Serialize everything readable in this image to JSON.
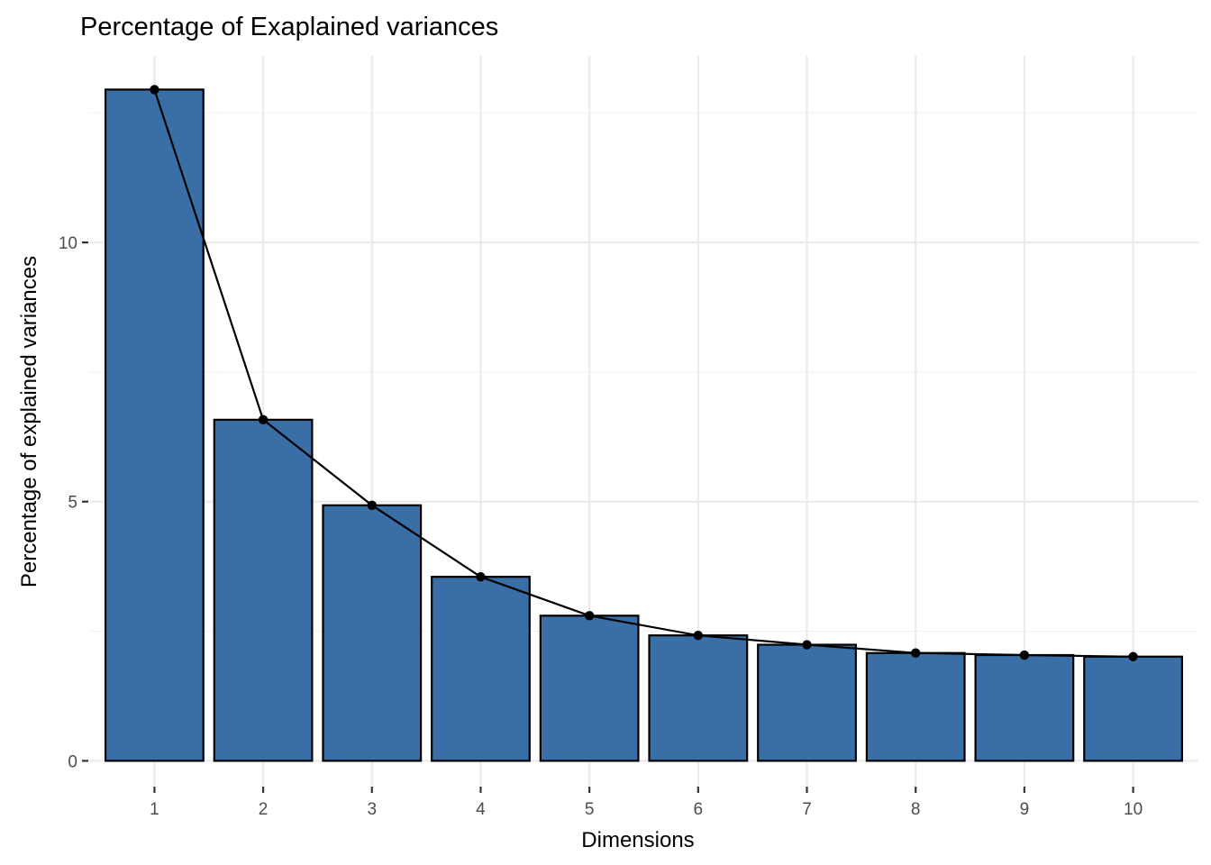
{
  "chart_data": {
    "type": "bar",
    "title": "Percentage of Exaplained variances",
    "xlabel": "Dimensions",
    "ylabel": "Percentage of explained variances",
    "categories": [
      "1",
      "2",
      "3",
      "4",
      "5",
      "6",
      "7",
      "8",
      "9",
      "10"
    ],
    "values": [
      12.95,
      6.58,
      4.93,
      3.55,
      2.8,
      2.42,
      2.24,
      2.08,
      2.04,
      2.01
    ],
    "line_overlay": true,
    "ylim": [
      -0.48,
      13.6
    ],
    "yticks": [
      0,
      5,
      10
    ],
    "ytick_labels": [
      "0",
      "5",
      "10"
    ],
    "minor_y_gridlines": [
      2.5,
      7.5,
      12.5
    ],
    "grid": true,
    "legend": "none",
    "colors": {
      "bar_fill": "#3A6EA6",
      "bar_stroke": "#000000",
      "line": "#000000",
      "point": "#000000",
      "grid_major": "#EBEBEB",
      "grid_minor": "#F2F2F2",
      "tick": "#333333",
      "tick_label": "#4D4D4D"
    }
  }
}
